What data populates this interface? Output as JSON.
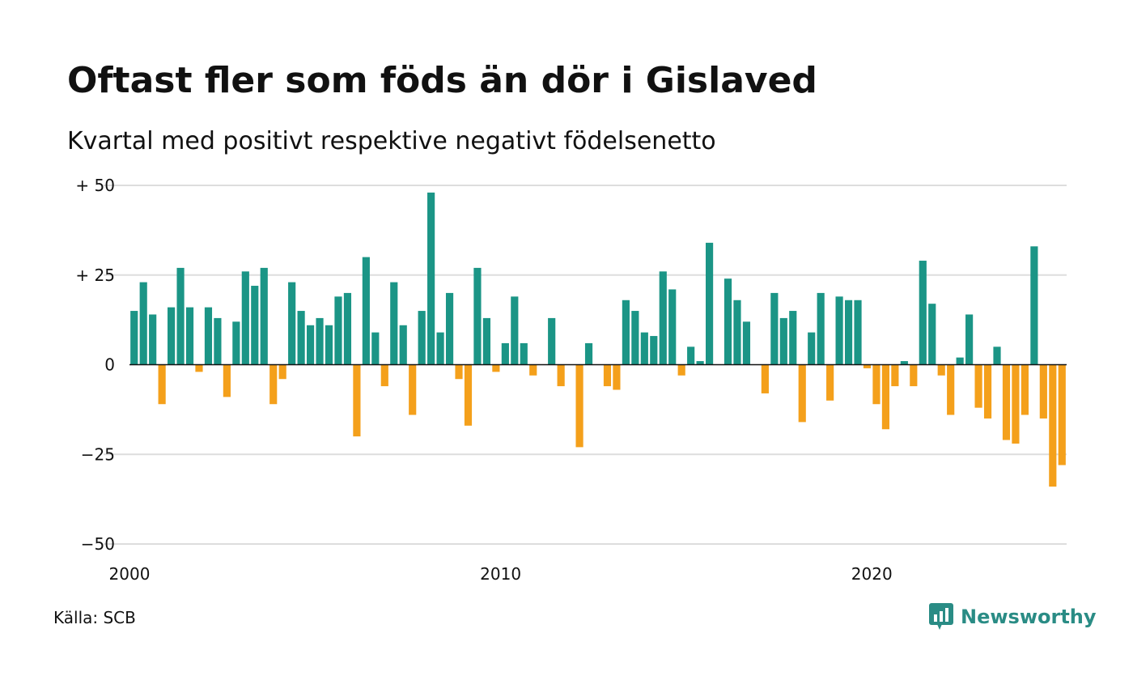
{
  "title": "Oftast fler som föds än dör i Gislaved",
  "subtitle": "Kvartal med positivt respektive negativt födelsenetto",
  "source": "Källa: SCB",
  "brand": {
    "name": "Newsworthy",
    "icon": "newsworthy-logo-icon",
    "color": "#2a8c85"
  },
  "colors": {
    "positive": "#1b9586",
    "negative": "#f4a01b",
    "grid": "#dddddd",
    "zero_line": "#111111"
  },
  "chart_data": {
    "type": "bar",
    "title": "Oftast fler som föds än dör i Gislaved",
    "subtitle": "Kvartal med positivt respektive negativt födelsenetto",
    "xlabel": "",
    "ylabel": "",
    "ylim": [
      -50,
      50
    ],
    "xlim": [
      2000,
      2025.25
    ],
    "grid": true,
    "y_ticks": [
      {
        "value": 50,
        "label": "+ 50"
      },
      {
        "value": 25,
        "label": "+ 25"
      },
      {
        "value": 0,
        "label": "0"
      },
      {
        "value": -25,
        "label": "−25"
      },
      {
        "value": -50,
        "label": "−50"
      }
    ],
    "x_ticks": [
      {
        "value": 2000,
        "label": "2000"
      },
      {
        "value": 2010,
        "label": "2010"
      },
      {
        "value": 2020,
        "label": "2020"
      }
    ],
    "categories": [
      "2000 K1",
      "2000 K2",
      "2000 K3",
      "2000 K4",
      "2001 K1",
      "2001 K2",
      "2001 K3",
      "2001 K4",
      "2002 K1",
      "2002 K2",
      "2002 K3",
      "2002 K4",
      "2003 K1",
      "2003 K2",
      "2003 K3",
      "2003 K4",
      "2004 K1",
      "2004 K2",
      "2004 K3",
      "2004 K4",
      "2005 K1",
      "2005 K2",
      "2005 K3",
      "2005 K4",
      "2006 K1",
      "2006 K2",
      "2006 K3",
      "2006 K4",
      "2007 K1",
      "2007 K2",
      "2007 K3",
      "2007 K4",
      "2008 K1",
      "2008 K2",
      "2008 K3",
      "2008 K4",
      "2009 K1",
      "2009 K2",
      "2009 K3",
      "2009 K4",
      "2010 K1",
      "2010 K2",
      "2010 K3",
      "2010 K4",
      "2011 K1",
      "2011 K2",
      "2011 K3",
      "2011 K4",
      "2012 K1",
      "2012 K2",
      "2012 K3",
      "2012 K4",
      "2013 K1",
      "2013 K2",
      "2013 K3",
      "2013 K4",
      "2014 K1",
      "2014 K2",
      "2014 K3",
      "2014 K4",
      "2015 K1",
      "2015 K2",
      "2015 K3",
      "2015 K4",
      "2016 K1",
      "2016 K2",
      "2016 K3",
      "2016 K4",
      "2017 K1",
      "2017 K2",
      "2017 K3",
      "2017 K4",
      "2018 K1",
      "2018 K2",
      "2018 K3",
      "2018 K4",
      "2019 K1",
      "2019 K2",
      "2019 K3",
      "2019 K4",
      "2020 K1",
      "2020 K2",
      "2020 K3",
      "2020 K4",
      "2021 K1",
      "2021 K2",
      "2021 K3",
      "2021 K4",
      "2022 K1",
      "2022 K2",
      "2022 K3",
      "2022 K4",
      "2023 K1",
      "2023 K2",
      "2023 K3",
      "2023 K4",
      "2024 K1",
      "2024 K2",
      "2024 K3",
      "2024 K4",
      "2025 K1"
    ],
    "values": [
      15,
      23,
      14,
      -11,
      16,
      27,
      16,
      -2,
      16,
      13,
      -9,
      12,
      26,
      22,
      27,
      -11,
      -4,
      23,
      15,
      11,
      13,
      11,
      19,
      20,
      -20,
      30,
      9,
      -6,
      23,
      11,
      -14,
      15,
      48,
      9,
      20,
      -4,
      -17,
      27,
      13,
      -2,
      6,
      19,
      6,
      -3,
      0,
      13,
      -6,
      0,
      -23,
      6,
      0,
      -6,
      -7,
      18,
      15,
      9,
      8,
      26,
      21,
      -3,
      5,
      1,
      34,
      0,
      24,
      18,
      12,
      0,
      -8,
      20,
      13,
      15,
      -16,
      9,
      20,
      -10,
      19,
      18,
      18,
      -1,
      -11,
      -18,
      -6,
      1,
      -6,
      29,
      17,
      -3,
      -14,
      2,
      14,
      -12,
      -15,
      5,
      -21,
      -22,
      -14,
      33,
      -15,
      -34,
      -28
    ]
  }
}
